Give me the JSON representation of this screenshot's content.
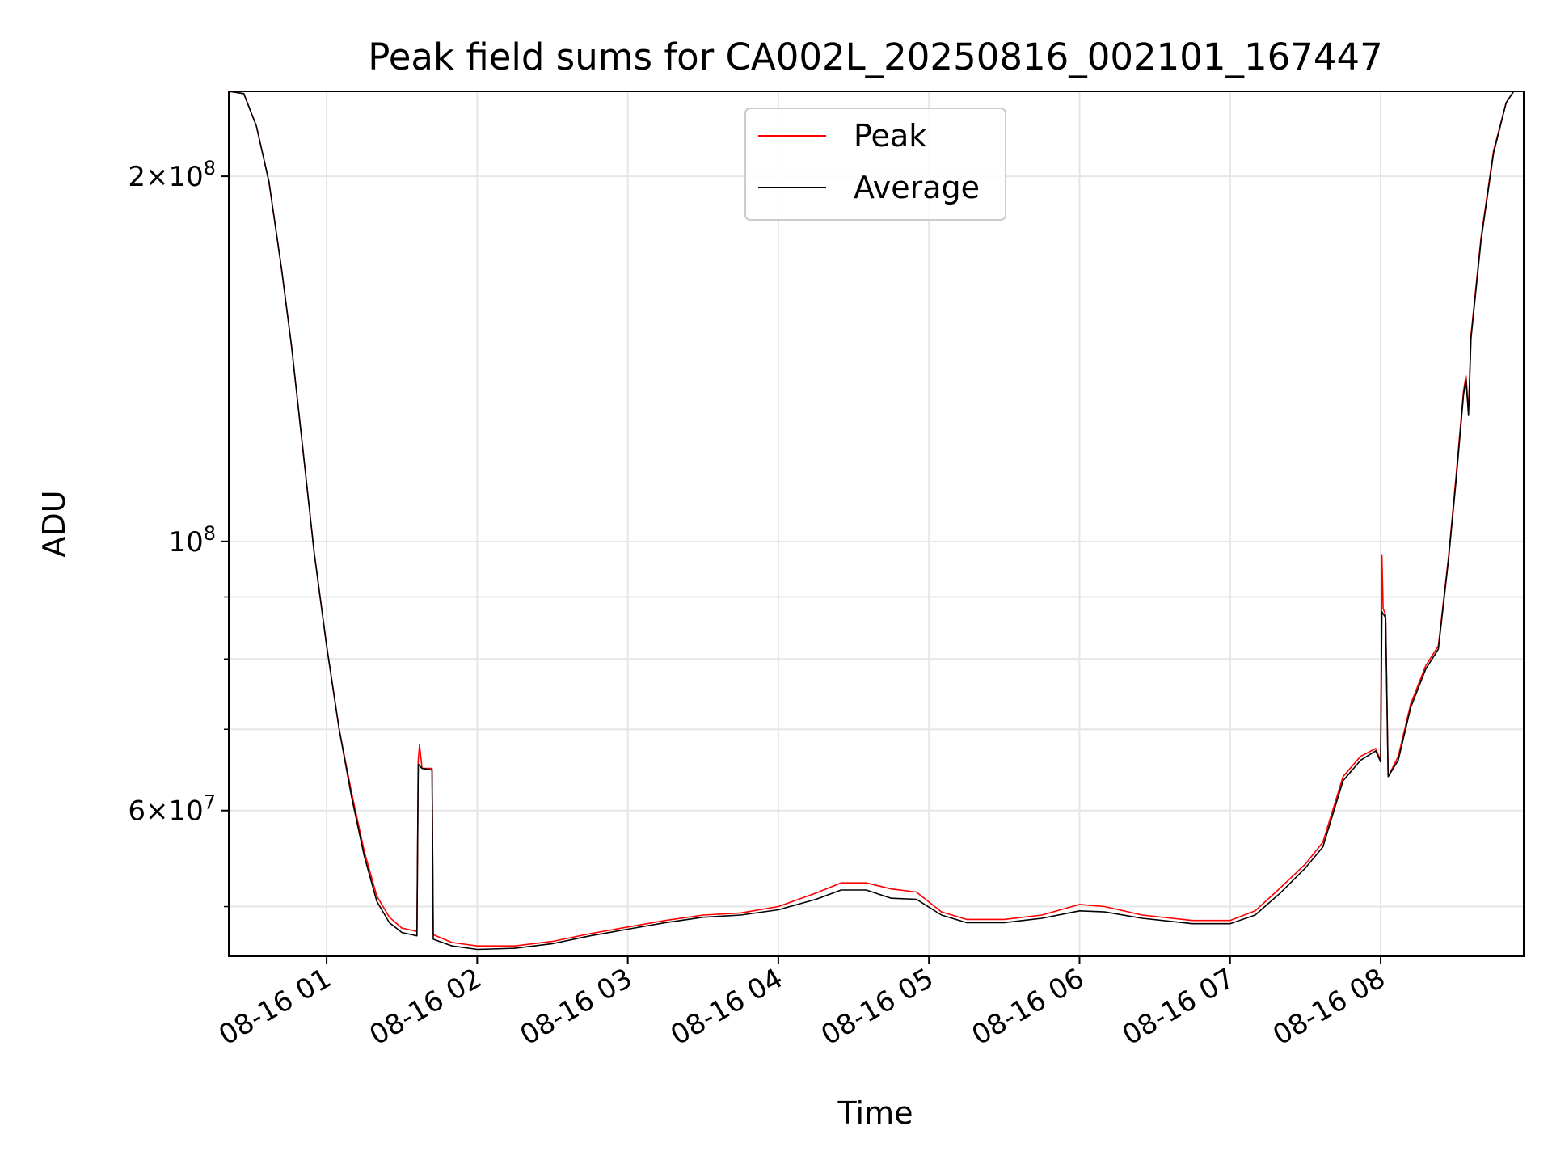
{
  "chart_data": {
    "type": "line",
    "title": "Peak field sums for CA002L_20250816_002101_167447",
    "xlabel": "Time",
    "ylabel": "ADU",
    "x_ticks": [
      "08-16 01",
      "08-16 02",
      "08-16 03",
      "08-16 04",
      "08-16 05",
      "08-16 06",
      "08-16 07",
      "08-16 08"
    ],
    "y_ticks": [
      {
        "value": 60000000,
        "mant": "6",
        "exp": "7"
      },
      {
        "value": 100000000,
        "mant": "",
        "exp": "8"
      },
      {
        "value": 200000000,
        "mant": "2",
        "exp": "8"
      }
    ],
    "y_scale": "log",
    "xlim": [
      "2025-08-16 00:21",
      "2025-08-16 08:57"
    ],
    "ylim": [
      45500000,
      235000000
    ],
    "grid": true,
    "legend_position": "upper center",
    "series": [
      {
        "name": "Peak",
        "color": "#ff0000",
        "points": [
          [
            "2025-08-16 00:21",
            235000000
          ],
          [
            "2025-08-16 00:27",
            234000000
          ],
          [
            "2025-08-16 00:32",
            220000000
          ],
          [
            "2025-08-16 00:37",
            198000000
          ],
          [
            "2025-08-16 00:42",
            168000000
          ],
          [
            "2025-08-16 00:46",
            145000000
          ],
          [
            "2025-08-16 00:50",
            122000000
          ],
          [
            "2025-08-16 00:55",
            98000000
          ],
          [
            "2025-08-16 01:00",
            82000000
          ],
          [
            "2025-08-16 01:05",
            70000000
          ],
          [
            "2025-08-16 01:10",
            62000000
          ],
          [
            "2025-08-16 01:15",
            55500000
          ],
          [
            "2025-08-16 01:20",
            51000000
          ],
          [
            "2025-08-16 01:25",
            49000000
          ],
          [
            "2025-08-16 01:30",
            48000000
          ],
          [
            "2025-08-16 01:36",
            47700000
          ],
          [
            "2025-08-16 01:36.5",
            66000000
          ],
          [
            "2025-08-16 01:37",
            68000000
          ],
          [
            "2025-08-16 01:38",
            65000000
          ],
          [
            "2025-08-16 01:42",
            65000000
          ],
          [
            "2025-08-16 01:42.5",
            47400000
          ],
          [
            "2025-08-16 01:50",
            46700000
          ],
          [
            "2025-08-16 02:00",
            46400000
          ],
          [
            "2025-08-16 02:15",
            46400000
          ],
          [
            "2025-08-16 02:30",
            46800000
          ],
          [
            "2025-08-16 02:45",
            47500000
          ],
          [
            "2025-08-16 03:00",
            48100000
          ],
          [
            "2025-08-16 03:15",
            48700000
          ],
          [
            "2025-08-16 03:30",
            49200000
          ],
          [
            "2025-08-16 03:45",
            49400000
          ],
          [
            "2025-08-16 04:00",
            50000000
          ],
          [
            "2025-08-16 04:15",
            51300000
          ],
          [
            "2025-08-16 04:25",
            52300000
          ],
          [
            "2025-08-16 04:35",
            52300000
          ],
          [
            "2025-08-16 04:45",
            51700000
          ],
          [
            "2025-08-16 04:55",
            51400000
          ],
          [
            "2025-08-16 05:05",
            49500000
          ],
          [
            "2025-08-16 05:15",
            48800000
          ],
          [
            "2025-08-16 05:30",
            48800000
          ],
          [
            "2025-08-16 05:45",
            49200000
          ],
          [
            "2025-08-16 06:00",
            50200000
          ],
          [
            "2025-08-16 06:10",
            50000000
          ],
          [
            "2025-08-16 06:25",
            49200000
          ],
          [
            "2025-08-16 06:45",
            48700000
          ],
          [
            "2025-08-16 07:00",
            48700000
          ],
          [
            "2025-08-16 07:10",
            49600000
          ],
          [
            "2025-08-16 07:20",
            51800000
          ],
          [
            "2025-08-16 07:30",
            54200000
          ],
          [
            "2025-08-16 07:37",
            56500000
          ],
          [
            "2025-08-16 07:45",
            64000000
          ],
          [
            "2025-08-16 07:52",
            66500000
          ],
          [
            "2025-08-16 07:58",
            67500000
          ],
          [
            "2025-08-16 08:00",
            66000000
          ],
          [
            "2025-08-16 08:00.5",
            97500000
          ],
          [
            "2025-08-16 08:01",
            88000000
          ],
          [
            "2025-08-16 08:02",
            87000000
          ],
          [
            "2025-08-16 08:03",
            64000000
          ],
          [
            "2025-08-16 08:07",
            66500000
          ],
          [
            "2025-08-16 08:12",
            73500000
          ],
          [
            "2025-08-16 08:18",
            79000000
          ],
          [
            "2025-08-16 08:23",
            82000000
          ],
          [
            "2025-08-16 08:27",
            97000000
          ],
          [
            "2025-08-16 08:30",
            113000000
          ],
          [
            "2025-08-16 08:33",
            133000000
          ],
          [
            "2025-08-16 08:34",
            137000000
          ],
          [
            "2025-08-16 08:35",
            128000000
          ],
          [
            "2025-08-16 08:36",
            148000000
          ],
          [
            "2025-08-16 08:40",
            178000000
          ],
          [
            "2025-08-16 08:45",
            210000000
          ],
          [
            "2025-08-16 08:50",
            230000000
          ],
          [
            "2025-08-16 08:53",
            235000000
          ],
          [
            "2025-08-16 08:57",
            235000000
          ]
        ]
      },
      {
        "name": "Average",
        "color": "#000000",
        "points": [
          [
            "2025-08-16 00:21",
            235000000
          ],
          [
            "2025-08-16 00:27",
            234000000
          ],
          [
            "2025-08-16 00:32",
            220000000
          ],
          [
            "2025-08-16 00:37",
            198000000
          ],
          [
            "2025-08-16 00:42",
            168000000
          ],
          [
            "2025-08-16 00:46",
            145000000
          ],
          [
            "2025-08-16 00:50",
            122000000
          ],
          [
            "2025-08-16 00:55",
            98000000
          ],
          [
            "2025-08-16 01:00",
            82000000
          ],
          [
            "2025-08-16 01:05",
            70000000
          ],
          [
            "2025-08-16 01:10",
            61500000
          ],
          [
            "2025-08-16 01:15",
            55000000
          ],
          [
            "2025-08-16 01:20",
            50500000
          ],
          [
            "2025-08-16 01:25",
            48500000
          ],
          [
            "2025-08-16 01:30",
            47600000
          ],
          [
            "2025-08-16 01:36",
            47300000
          ],
          [
            "2025-08-16 01:36.5",
            65500000
          ],
          [
            "2025-08-16 01:38",
            65000000
          ],
          [
            "2025-08-16 01:42",
            64800000
          ],
          [
            "2025-08-16 01:42.5",
            47000000
          ],
          [
            "2025-08-16 01:50",
            46400000
          ],
          [
            "2025-08-16 02:00",
            46100000
          ],
          [
            "2025-08-16 02:15",
            46200000
          ],
          [
            "2025-08-16 02:30",
            46600000
          ],
          [
            "2025-08-16 02:45",
            47300000
          ],
          [
            "2025-08-16 03:00",
            47900000
          ],
          [
            "2025-08-16 03:15",
            48500000
          ],
          [
            "2025-08-16 03:30",
            49000000
          ],
          [
            "2025-08-16 03:45",
            49200000
          ],
          [
            "2025-08-16 04:00",
            49700000
          ],
          [
            "2025-08-16 04:15",
            50700000
          ],
          [
            "2025-08-16 04:25",
            51600000
          ],
          [
            "2025-08-16 04:35",
            51600000
          ],
          [
            "2025-08-16 04:45",
            50800000
          ],
          [
            "2025-08-16 04:55",
            50700000
          ],
          [
            "2025-08-16 05:05",
            49200000
          ],
          [
            "2025-08-16 05:15",
            48500000
          ],
          [
            "2025-08-16 05:30",
            48500000
          ],
          [
            "2025-08-16 05:45",
            48900000
          ],
          [
            "2025-08-16 06:00",
            49600000
          ],
          [
            "2025-08-16 06:10",
            49500000
          ],
          [
            "2025-08-16 06:25",
            48900000
          ],
          [
            "2025-08-16 06:45",
            48400000
          ],
          [
            "2025-08-16 07:00",
            48400000
          ],
          [
            "2025-08-16 07:10",
            49200000
          ],
          [
            "2025-08-16 07:20",
            51300000
          ],
          [
            "2025-08-16 07:30",
            53800000
          ],
          [
            "2025-08-16 07:37",
            56000000
          ],
          [
            "2025-08-16 07:45",
            63500000
          ],
          [
            "2025-08-16 07:52",
            66000000
          ],
          [
            "2025-08-16 07:58",
            67200000
          ],
          [
            "2025-08-16 08:00",
            65800000
          ],
          [
            "2025-08-16 08:00.5",
            87500000
          ],
          [
            "2025-08-16 08:02",
            86500000
          ],
          [
            "2025-08-16 08:03",
            64000000
          ],
          [
            "2025-08-16 08:07",
            66000000
          ],
          [
            "2025-08-16 08:12",
            73000000
          ],
          [
            "2025-08-16 08:18",
            78500000
          ],
          [
            "2025-08-16 08:23",
            81500000
          ],
          [
            "2025-08-16 08:27",
            96500000
          ],
          [
            "2025-08-16 08:30",
            112000000
          ],
          [
            "2025-08-16 08:33",
            132000000
          ],
          [
            "2025-08-16 08:34",
            136000000
          ],
          [
            "2025-08-16 08:35",
            127000000
          ],
          [
            "2025-08-16 08:36",
            147000000
          ],
          [
            "2025-08-16 08:40",
            177000000
          ],
          [
            "2025-08-16 08:45",
            209000000
          ],
          [
            "2025-08-16 08:50",
            230000000
          ],
          [
            "2025-08-16 08:53",
            235000000
          ],
          [
            "2025-08-16 08:57",
            235000000
          ]
        ]
      }
    ]
  }
}
